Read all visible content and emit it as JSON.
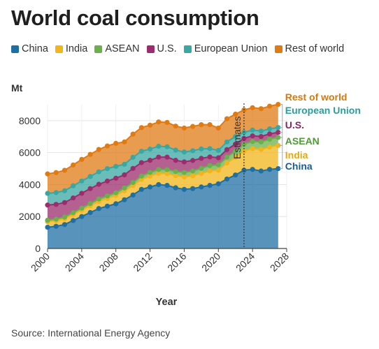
{
  "title": "World coal consumption",
  "unit": "Mt",
  "source": "Source: International Energy Agency",
  "legend": [
    {
      "name": "China",
      "color": "#1f6fa3"
    },
    {
      "name": "India",
      "color": "#f2b51b"
    },
    {
      "name": "ASEAN",
      "color": "#6ab04c"
    },
    {
      "name": "U.S.",
      "color": "#9b2c6e"
    },
    {
      "name": "European Union",
      "color": "#3aa7a3"
    },
    {
      "name": "Rest of world",
      "color": "#e07b14"
    }
  ],
  "chart_data": {
    "type": "area",
    "stacked": true,
    "title": "World coal consumption",
    "xlabel": "Year",
    "ylabel": "Mt",
    "x": [
      2000,
      2001,
      2002,
      2003,
      2004,
      2005,
      2006,
      2007,
      2008,
      2009,
      2010,
      2011,
      2012,
      2013,
      2014,
      2015,
      2016,
      2017,
      2018,
      2019,
      2020,
      2021,
      2022,
      2023,
      2024,
      2025,
      2026,
      2027
    ],
    "xticks": [
      "2000",
      "2004",
      "2008",
      "2012",
      "2016",
      "2020",
      "2024",
      "2028"
    ],
    "yticks": [
      "0",
      "2000",
      "4000",
      "6000",
      "8000"
    ],
    "xlim": [
      2000,
      2028
    ],
    "ylim": [
      0,
      9000
    ],
    "grid": true,
    "estimates_from": 2023,
    "annotation": "Estimates",
    "series": [
      {
        "name": "China",
        "color": "#1f6fa3",
        "label_color": "#1a5d8c",
        "values": [
          1330,
          1390,
          1500,
          1750,
          2000,
          2250,
          2500,
          2650,
          2800,
          3050,
          3350,
          3700,
          3850,
          4000,
          3950,
          3800,
          3700,
          3750,
          3850,
          3950,
          4050,
          4350,
          4600,
          4900,
          4950,
          4850,
          4950,
          5000
        ]
      },
      {
        "name": "India",
        "color": "#f2b51b",
        "label_color": "#e8a712",
        "values": [
          350,
          350,
          360,
          380,
          400,
          420,
          450,
          480,
          520,
          560,
          580,
          620,
          680,
          700,
          740,
          760,
          780,
          800,
          850,
          900,
          850,
          1000,
          1100,
          1200,
          1300,
          1350,
          1400,
          1450
        ]
      },
      {
        "name": "ASEAN",
        "color": "#6ab04c",
        "label_color": "#4f9a36",
        "values": [
          90,
          100,
          105,
          115,
          125,
          140,
          150,
          160,
          170,
          180,
          200,
          215,
          230,
          240,
          250,
          260,
          280,
          300,
          320,
          340,
          340,
          370,
          400,
          430,
          450,
          470,
          490,
          500
        ]
      },
      {
        "name": "U.S.",
        "color": "#9b2c6e",
        "label_color": "#8a2462",
        "values": [
          950,
          920,
          910,
          920,
          930,
          940,
          920,
          930,
          910,
          820,
          880,
          840,
          760,
          780,
          780,
          700,
          660,
          660,
          620,
          540,
          440,
          470,
          430,
          360,
          350,
          340,
          330,
          320
        ]
      },
      {
        "name": "European Union",
        "color": "#3aa7a3",
        "label_color": "#2c9c98",
        "values": [
          730,
          740,
          740,
          760,
          770,
          760,
          780,
          780,
          740,
          660,
          700,
          710,
          700,
          680,
          650,
          640,
          620,
          610,
          590,
          520,
          460,
          480,
          480,
          380,
          360,
          340,
          320,
          300
        ]
      },
      {
        "name": "Rest of world",
        "color": "#e07b14",
        "label_color": "#d97706",
        "values": [
          1220,
          1250,
          1280,
          1300,
          1350,
          1380,
          1400,
          1420,
          1440,
          1400,
          1450,
          1480,
          1500,
          1520,
          1520,
          1500,
          1500,
          1520,
          1520,
          1500,
          1400,
          1450,
          1400,
          1400,
          1400,
          1400,
          1420,
          1450
        ]
      }
    ]
  }
}
